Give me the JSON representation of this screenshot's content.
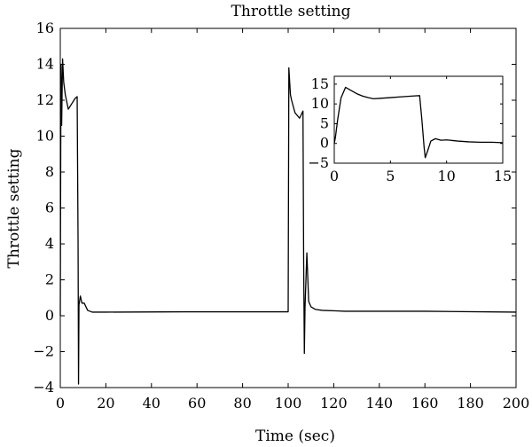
{
  "chart_data": [
    {
      "type": "line",
      "title": "Throttle setting",
      "xlabel": "Time (sec)",
      "ylabel": "Throttle setting",
      "xlim": [
        0,
        200
      ],
      "ylim": [
        -4,
        16
      ],
      "xticks": [
        0,
        20,
        40,
        60,
        80,
        100,
        120,
        140,
        160,
        180,
        200
      ],
      "yticks": [
        -4,
        -2,
        0,
        2,
        4,
        6,
        8,
        10,
        12,
        14,
        16
      ],
      "grid": false,
      "series": [
        {
          "color": "#000000",
          "x": [
            0,
            0.3,
            0.6,
            1.0,
            1.5,
            2.2,
            3.5,
            5,
            6.5,
            7.4,
            7.8,
            8.0,
            8.2,
            8.8,
            9.5,
            10.5,
            12,
            14,
            20,
            55,
            100,
            100.3,
            101.0,
            101.5,
            103,
            105,
            106.5,
            106.8,
            107.1,
            107.4,
            107.8,
            108.2,
            109,
            110,
            112,
            115,
            125,
            160,
            200
          ],
          "y": [
            0,
            14.0,
            10.6,
            14.3,
            13.0,
            12.3,
            11.5,
            11.8,
            12.1,
            12.2,
            4.0,
            -3.8,
            0.6,
            1.1,
            0.7,
            0.7,
            0.3,
            0.2,
            0.2,
            0.22,
            0.22,
            13.8,
            12.3,
            12.0,
            11.3,
            11.0,
            11.4,
            3.0,
            -2.1,
            0.5,
            2.0,
            3.5,
            0.8,
            0.5,
            0.35,
            0.3,
            0.25,
            0.25,
            0.2
          ]
        }
      ]
    },
    {
      "type": "line",
      "xlim": [
        0,
        15
      ],
      "ylim": [
        -5,
        17
      ],
      "xticks": [
        0,
        5,
        10,
        15
      ],
      "yticks": [
        -5,
        0,
        5,
        10,
        15
      ],
      "grid": false,
      "legend": "none",
      "series": [
        {
          "color": "#000000",
          "x": [
            0,
            0.1,
            0.3,
            0.6,
            1.0,
            1.5,
            2.0,
            2.5,
            3.0,
            3.5,
            4.0,
            5.0,
            6.0,
            7.0,
            7.6,
            7.8,
            8.0,
            8.1,
            8.3,
            8.6,
            9.0,
            9.5,
            10.0,
            11.0,
            12.0,
            13.0,
            14.0,
            15.0
          ],
          "y": [
            0,
            1.5,
            6.0,
            11.5,
            14.2,
            13.4,
            12.6,
            12.0,
            11.6,
            11.3,
            11.4,
            11.6,
            11.8,
            12.0,
            12.1,
            6.0,
            -1.0,
            -3.6,
            -2.0,
            0.6,
            1.2,
            0.8,
            0.9,
            0.6,
            0.4,
            0.3,
            0.3,
            0.2
          ]
        }
      ]
    }
  ]
}
